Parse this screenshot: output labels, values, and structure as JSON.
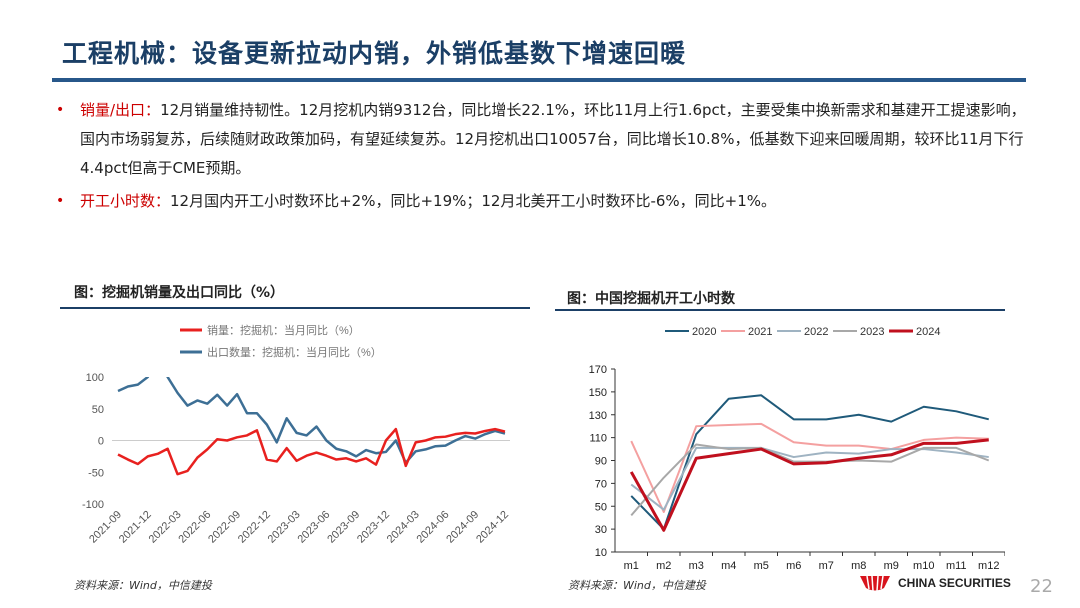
{
  "header": {
    "title": "工程机械：设备更新拉动内销，外销低基数下增速回暖"
  },
  "bullets": [
    {
      "key": "销量/出口：",
      "text": "12月销量维持韧性。12月挖机内销9312台，同比增长22.1%，环比11月上行1.6pct，主要受集中换新需求和基建开工提速影响，国内市场弱复苏，后续随财政政策加码，有望延续复苏。12月挖机出口10057台，同比增长10.8%，低基数下迎来回暖周期，较环比11月下行4.4pct但高于CME预期。"
    },
    {
      "key": "开工小时数：",
      "text": "12月国内开工小时数环比+2%，同比+19%；12月北美开工小时数环比-6%，同比+1%。"
    }
  ],
  "left_panel": {
    "title": "图：挖掘机销量及出口同比（%）",
    "source": "资料来源：Wind，中信建投"
  },
  "right_panel": {
    "title": "图：中国挖掘机开工小时数",
    "source": "资料来源：Wind，中信建投"
  },
  "footer": {
    "logo_text": "CHINA SECURITIES",
    "page_number": "22"
  },
  "chart_data": [
    {
      "type": "line",
      "title": "图：挖掘机销量及出口同比（%）",
      "ylim": [
        -100,
        100
      ],
      "yticks": [
        100,
        50,
        0,
        -50,
        -100
      ],
      "legend": "top",
      "x": [
        "2021-09",
        "2021-10",
        "2021-11",
        "2021-12",
        "2022-01",
        "2022-02",
        "2022-03",
        "2022-04",
        "2022-05",
        "2022-06",
        "2022-07",
        "2022-08",
        "2022-09",
        "2022-10",
        "2022-11",
        "2022-12",
        "2023-01",
        "2023-02",
        "2023-03",
        "2023-04",
        "2023-05",
        "2023-06",
        "2023-07",
        "2023-08",
        "2023-09",
        "2023-10",
        "2023-11",
        "2023-12",
        "2024-01",
        "2024-02",
        "2024-03",
        "2024-04",
        "2024-05",
        "2024-06",
        "2024-07",
        "2024-08",
        "2024-09",
        "2024-10",
        "2024-11",
        "2024-12"
      ],
      "xtick_labels": [
        "2021-09",
        "2021-12",
        "2022-03",
        "2022-06",
        "2022-09",
        "2022-12",
        "2023-03",
        "2023-06",
        "2023-09",
        "2023-12",
        "2024-03",
        "2024-06",
        "2024-09",
        "2024-12"
      ],
      "series": [
        {
          "name": "销量：挖掘机：当月同比（%）",
          "color": "#e8211f",
          "values": [
            -22,
            -30,
            -37,
            -25,
            -21,
            -13,
            -53,
            -48,
            -27,
            -14,
            2,
            0,
            5,
            8,
            16,
            -30,
            -33,
            -12,
            -32,
            -24,
            -19,
            -24,
            -30,
            -28,
            -33,
            -28,
            -38,
            0,
            18,
            -40,
            -3,
            0,
            5,
            6,
            10,
            12,
            11,
            15,
            18,
            14
          ]
        },
        {
          "name": "出口数量：挖掘机：当月同比（%）",
          "color": "#3d6f95",
          "values": [
            78,
            85,
            88,
            100,
            130,
            100,
            75,
            55,
            63,
            58,
            72,
            55,
            73,
            43,
            43,
            25,
            -3,
            35,
            12,
            8,
            22,
            0,
            -13,
            -17,
            -25,
            -15,
            -20,
            -18,
            0,
            -35,
            -17,
            -14,
            -9,
            -8,
            0,
            7,
            3,
            10,
            15,
            11
          ]
        }
      ]
    },
    {
      "type": "line",
      "title": "图：中国挖掘机开工小时数",
      "ylim": [
        10,
        170
      ],
      "yticks": [
        170,
        150,
        130,
        110,
        90,
        70,
        50,
        30,
        10
      ],
      "legend": "top",
      "categories": [
        "m1",
        "m2",
        "m3",
        "m4",
        "m5",
        "m6",
        "m7",
        "m8",
        "m9",
        "m10",
        "m11",
        "m12"
      ],
      "series": [
        {
          "name": "2020",
          "color": "#1f5a7a",
          "values": [
            59,
            30,
            113,
            144,
            147,
            126,
            126,
            130,
            124,
            137,
            133,
            126
          ]
        },
        {
          "name": "2021",
          "color": "#f4a0a0",
          "values": [
            107,
            45,
            120,
            121,
            122,
            106,
            103,
            103,
            100,
            108,
            110,
            109
          ]
        },
        {
          "name": "2022",
          "color": "#9fb3c2",
          "values": [
            69,
            47,
            101,
            101,
            101,
            93,
            97,
            96,
            100,
            100,
            97,
            93
          ]
        },
        {
          "name": "2023",
          "color": "#a8a8a8",
          "values": [
            42,
            75,
            104,
            100,
            101,
            89,
            89,
            90,
            89,
            101,
            101,
            90
          ]
        },
        {
          "name": "2024",
          "color": "#c0101e",
          "values": [
            80,
            29,
            92,
            96,
            100,
            87,
            88,
            92,
            95,
            105,
            105,
            108
          ]
        }
      ]
    }
  ]
}
